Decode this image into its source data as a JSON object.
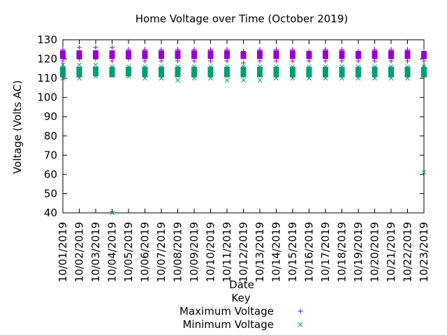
{
  "chart_data": {
    "type": "scatter",
    "title": "Home Voltage over Time (October 2019)",
    "xlabel": "Date",
    "ylabel": "Voltage (Volts AC)",
    "ylim": [
      40,
      130
    ],
    "yticks": [
      40,
      50,
      60,
      70,
      80,
      90,
      100,
      110,
      120,
      130
    ],
    "x": [
      "10/01/2019",
      "10/02/2019",
      "10/03/2019",
      "10/04/2019",
      "10/05/2019",
      "10/06/2019",
      "10/07/2019",
      "10/08/2019",
      "10/09/2019",
      "10/10/2019",
      "10/11/2019",
      "10/12/2019",
      "10/13/2019",
      "10/14/2019",
      "10/15/2019",
      "10/16/2019",
      "10/17/2019",
      "10/18/2019",
      "10/19/2019",
      "10/20/2019",
      "10/21/2019",
      "10/22/2019",
      "10/23/2019"
    ],
    "grid": false,
    "legend": {
      "title": "Key",
      "position": "bottom-center"
    },
    "series": [
      {
        "name": "Maximum Voltage",
        "marker": "+",
        "color": "#9400d3",
        "ranges": [
          [
            119,
            125
          ],
          [
            120,
            126
          ],
          [
            120,
            126
          ],
          [
            119,
            126
          ],
          [
            120,
            125
          ],
          [
            119,
            125
          ],
          [
            119,
            125
          ],
          [
            119,
            125
          ],
          [
            119,
            125
          ],
          [
            119,
            125
          ],
          [
            119,
            125
          ],
          [
            118,
            124
          ],
          [
            119,
            125
          ],
          [
            119,
            125
          ],
          [
            119,
            125
          ],
          [
            119,
            124
          ],
          [
            119,
            125
          ],
          [
            119,
            125
          ],
          [
            119,
            124
          ],
          [
            119,
            125
          ],
          [
            119,
            125
          ],
          [
            119,
            125
          ],
          [
            119,
            124
          ]
        ]
      },
      {
        "name": "Minimum Voltage",
        "marker": "x",
        "color": "#009e73",
        "ranges": [
          [
            110,
            117
          ],
          [
            110,
            117
          ],
          [
            111,
            117
          ],
          [
            40,
            116
          ],
          [
            111,
            116
          ],
          [
            110,
            116
          ],
          [
            110,
            116
          ],
          [
            109,
            116
          ],
          [
            110,
            116
          ],
          [
            110,
            116
          ],
          [
            109,
            116
          ],
          [
            109,
            116
          ],
          [
            109,
            116
          ],
          [
            110,
            116
          ],
          [
            110,
            116
          ],
          [
            110,
            116
          ],
          [
            110,
            116
          ],
          [
            110,
            116
          ],
          [
            110,
            116
          ],
          [
            110,
            116
          ],
          [
            110,
            116
          ],
          [
            110,
            116
          ],
          [
            61,
            116
          ]
        ]
      }
    ]
  }
}
